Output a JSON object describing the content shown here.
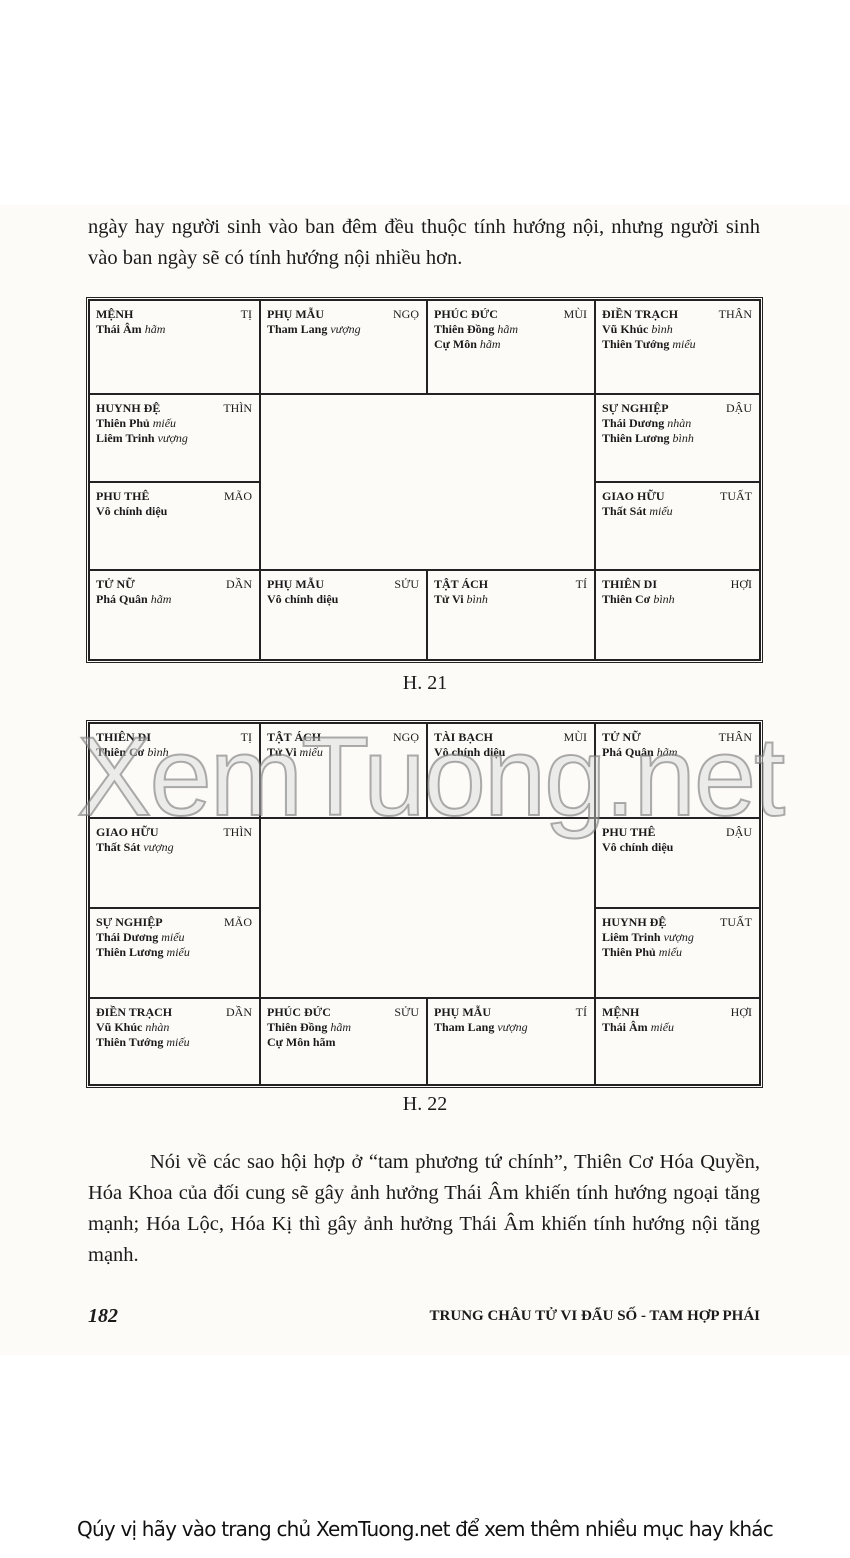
{
  "intro_text": "ngày hay người sinh vào ban đêm đều thuộc tính hướng nội, nhưng người sinh vào ban ngày sẽ có tính hướng nội nhiều hơn.",
  "charts": [
    {
      "caption": "H. 21",
      "cells": [
        {
          "name": "MỆNH",
          "branch": "TỊ",
          "stars": [
            [
              "Thái Âm",
              "hãm"
            ]
          ]
        },
        {
          "name": "PHỤ MẪU",
          "branch": "NGỌ",
          "stars": [
            [
              "Tham Lang",
              "vượng"
            ]
          ]
        },
        {
          "name": "PHÚC ĐỨC",
          "branch": "MÙI",
          "stars": [
            [
              "Thiên Đồng",
              "hãm"
            ],
            [
              "Cự Môn",
              "hãm"
            ]
          ]
        },
        {
          "name": "ĐIỀN TRẠCH",
          "branch": "THÂN",
          "stars": [
            [
              "Vũ Khúc",
              "bình"
            ],
            [
              "Thiên Tướng",
              "miếu"
            ]
          ]
        },
        {
          "name": "HUYNH ĐỆ",
          "branch": "THÌN",
          "stars": [
            [
              "Thiên Phủ",
              "miếu"
            ],
            [
              "Liêm Trinh",
              "vượng"
            ]
          ]
        },
        {
          "name": "SỰ NGHIỆP",
          "branch": "DẬU",
          "stars": [
            [
              "Thái Dương",
              "nhàn"
            ],
            [
              "Thiên Lương",
              "bình"
            ]
          ]
        },
        {
          "name": "PHU THÊ",
          "branch": "MÃO",
          "stars": [
            [
              "Vô chính diệu",
              ""
            ]
          ]
        },
        {
          "name": "GIAO HỮU",
          "branch": "TUẤT",
          "stars": [
            [
              "Thất Sát",
              "miếu"
            ]
          ]
        },
        {
          "name": "TỬ NỮ",
          "branch": "DẦN",
          "stars": [
            [
              "Phá Quân",
              "hãm"
            ]
          ]
        },
        {
          "name": "PHỤ MẪU",
          "branch": "SỬU",
          "stars": [
            [
              "Vô chính diệu",
              ""
            ]
          ]
        },
        {
          "name": "TẬT ÁCH",
          "branch": "TÍ",
          "stars": [
            [
              "Tử Vi",
              "bình"
            ]
          ]
        },
        {
          "name": "THIÊN DI",
          "branch": "HỢI",
          "stars": [
            [
              "Thiên Cơ",
              "bình"
            ]
          ]
        }
      ]
    },
    {
      "caption": "H. 22",
      "cells": [
        {
          "name": "THIÊN DI",
          "branch": "TỊ",
          "stars": [
            [
              "Thiên Cơ",
              "bình"
            ]
          ]
        },
        {
          "name": "TẬT ÁCH",
          "branch": "NGỌ",
          "stars": [
            [
              "Tử Vi",
              "miếu"
            ]
          ]
        },
        {
          "name": "TÀI BẠCH",
          "branch": "MÙI",
          "stars": [
            [
              "Vô chính diệu",
              ""
            ]
          ]
        },
        {
          "name": "TỬ NỮ",
          "branch": "THÂN",
          "stars": [
            [
              "Phá Quân",
              "hãm"
            ]
          ]
        },
        {
          "name": "GIAO HỮU",
          "branch": "THÌN",
          "stars": [
            [
              "Thất Sát",
              "vượng"
            ]
          ]
        },
        {
          "name": "PHU THÊ",
          "branch": "DẬU",
          "stars": [
            [
              "Vô chính diệu",
              ""
            ]
          ]
        },
        {
          "name": "SỰ NGHIỆP",
          "branch": "MÃO",
          "stars": [
            [
              "Thái Dương",
              "miếu"
            ],
            [
              "Thiên Lương",
              "miếu"
            ]
          ]
        },
        {
          "name": "HUYNH ĐỆ",
          "branch": "TUẤT",
          "stars": [
            [
              "Liêm Trinh",
              "vượng"
            ],
            [
              "Thiên Phủ",
              "miếu"
            ]
          ]
        },
        {
          "name": "ĐIỀN TRẠCH",
          "branch": "DẦN",
          "stars": [
            [
              "Vũ Khúc",
              "nhàn"
            ],
            [
              "Thiên Tướng",
              "miếu"
            ]
          ]
        },
        {
          "name": "PHÚC ĐỨC",
          "branch": "SỬU",
          "stars": [
            [
              "Thiên Đồng",
              "hãm"
            ],
            [
              "Cự Môn hãm",
              ""
            ]
          ]
        },
        {
          "name": "PHỤ MẪU",
          "branch": "TÍ",
          "stars": [
            [
              "Tham Lang",
              "vượng"
            ]
          ]
        },
        {
          "name": "MỆNH",
          "branch": "HỢI",
          "stars": [
            [
              "Thái Âm",
              "miếu"
            ]
          ]
        }
      ]
    }
  ],
  "watermark": "XemTuong.net",
  "body_text": "Nói về các sao hội hợp ở “tam phương tứ chính”, Thiên Cơ Hóa Quyền, Hóa Khoa của đối cung sẽ gây ảnh hưởng Thái Âm khiến tính hướng ngoại tăng mạnh; Hóa Lộc, Hóa Kị thì gây ảnh hưởng Thái Âm khiến tính hướng nội tăng mạnh.",
  "page_number": "182",
  "running_header": "TRUNG CHÂU TỬ VI ĐẨU SỐ - TAM HỢP PHÁI",
  "footer_text": "Qúy vị hãy vào trang chủ XemTuong.net để xem thêm nhiều mục hay khác"
}
